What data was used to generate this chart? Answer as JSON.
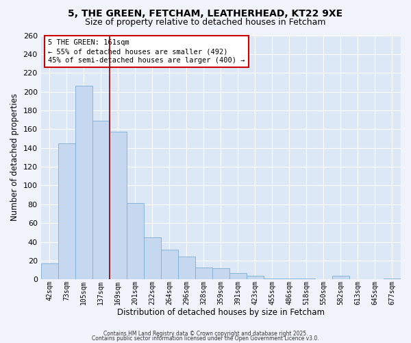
{
  "title": "5, THE GREEN, FETCHAM, LEATHERHEAD, KT22 9XE",
  "subtitle": "Size of property relative to detached houses in Fetcham",
  "xlabel": "Distribution of detached houses by size in Fetcham",
  "ylabel": "Number of detached properties",
  "bar_color": "#c5d8ef",
  "bar_edge_color": "#7aadd4",
  "background_color": "#dce8f5",
  "grid_color": "#ffffff",
  "categories": [
    "42sqm",
    "73sqm",
    "105sqm",
    "137sqm",
    "169sqm",
    "201sqm",
    "232sqm",
    "264sqm",
    "296sqm",
    "328sqm",
    "359sqm",
    "391sqm",
    "423sqm",
    "455sqm",
    "486sqm",
    "518sqm",
    "550sqm",
    "582sqm",
    "613sqm",
    "645sqm",
    "677sqm"
  ],
  "values": [
    17,
    145,
    206,
    169,
    157,
    81,
    45,
    32,
    24,
    13,
    12,
    7,
    4,
    1,
    1,
    1,
    0,
    4,
    0,
    0,
    1
  ],
  "redline_x": 3.5,
  "annotation_title": "5 THE GREEN: 161sqm",
  "annotation_line1": "← 55% of detached houses are smaller (492)",
  "annotation_line2": "45% of semi-detached houses are larger (400) →",
  "ylim": [
    0,
    260
  ],
  "yticks": [
    0,
    20,
    40,
    60,
    80,
    100,
    120,
    140,
    160,
    180,
    200,
    220,
    240,
    260
  ],
  "footer1": "Contains HM Land Registry data © Crown copyright and database right 2025.",
  "footer2": "Contains public sector information licensed under the Open Government Licence v3.0.",
  "fig_bg": "#f0f4fa"
}
